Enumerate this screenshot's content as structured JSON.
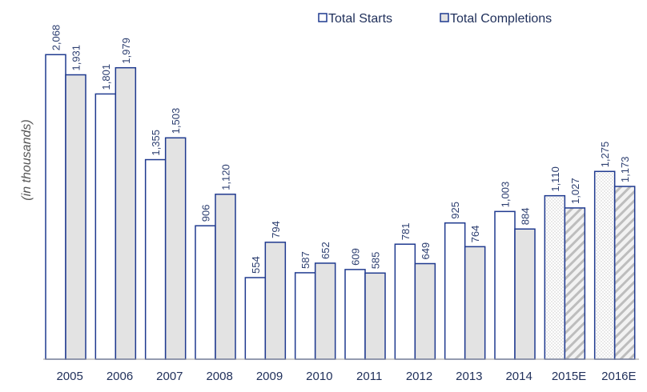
{
  "chart_data": {
    "type": "bar",
    "y_label": "(in thousands)",
    "categories": [
      "2005",
      "2006",
      "2007",
      "2008",
      "2009",
      "2010",
      "2011",
      "2012",
      "2013",
      "2014",
      "2015E",
      "2016E"
    ],
    "estimate": [
      false,
      false,
      false,
      false,
      false,
      false,
      false,
      false,
      false,
      false,
      true,
      true
    ],
    "series": [
      {
        "name": "Total Starts",
        "color": "#ffffff",
        "edge_color": "#1f3a8f",
        "estimate_pattern": "dots",
        "values": [
          2068,
          1801,
          1355,
          906,
          554,
          587,
          609,
          781,
          925,
          1003,
          1110,
          1275
        ],
        "value_labels": [
          "2,068",
          "1,801",
          "1,355",
          "906",
          "554",
          "587",
          "609",
          "781",
          "925",
          "1,003",
          "1,110",
          "1,275"
        ]
      },
      {
        "name": "Total Completions",
        "color": "#e3e3e3",
        "edge_color": "#1f3a8f",
        "estimate_pattern": "hatch",
        "values": [
          1931,
          1979,
          1503,
          1120,
          794,
          652,
          585,
          649,
          764,
          884,
          1027,
          1173
        ],
        "value_labels": [
          "1,931",
          "1,979",
          "1,503",
          "1,120",
          "794",
          "652",
          "585",
          "649",
          "764",
          "884",
          "1,027",
          "1,173"
        ]
      }
    ],
    "ylim": [
      0,
      2200
    ],
    "grid": false,
    "legend": "top-right"
  }
}
